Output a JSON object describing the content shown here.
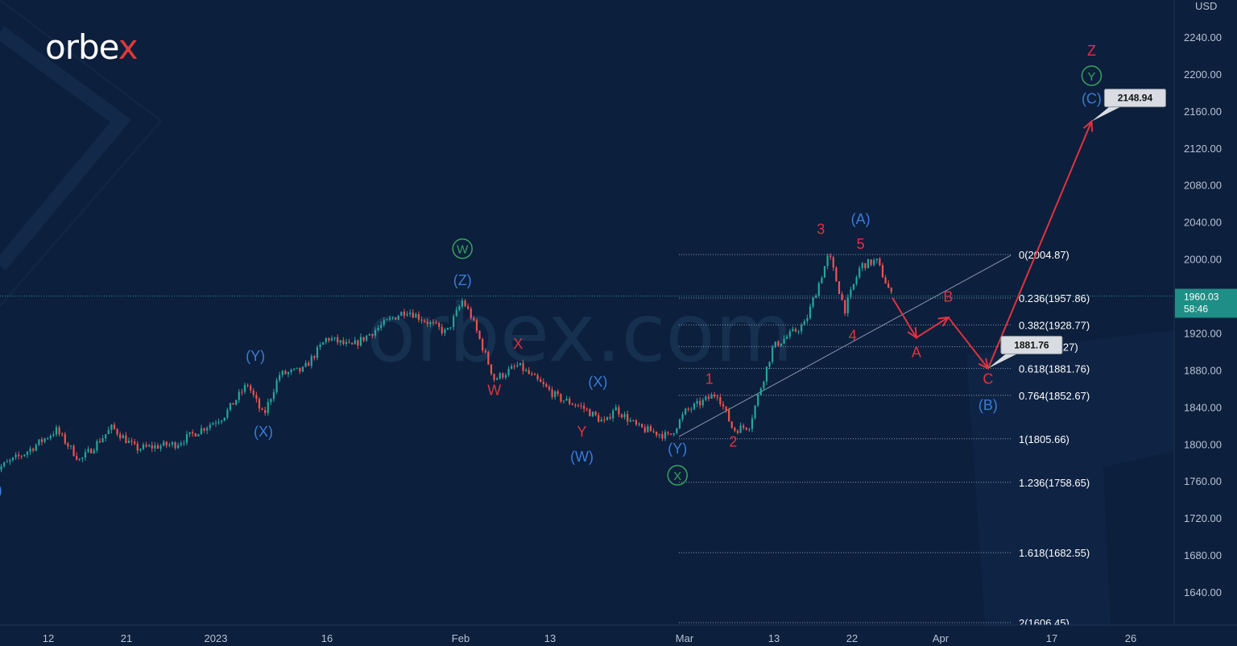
{
  "brand": {
    "logo_text": "orbe",
    "logo_x": "x",
    "watermark": "orbex.com"
  },
  "colors": {
    "background": "#0c1f3c",
    "candle_up": "#26a69a",
    "candle_down": "#ef5350",
    "wave_red": "#e0323f",
    "wave_blue": "#3a7bd8",
    "wave_green": "#39a35e",
    "price_tag": "#1e8f86"
  },
  "chart_data": {
    "type": "candlestick",
    "title": "",
    "ylabel": "USD",
    "currency": "USD",
    "ylim": [
      1612,
      2270
    ],
    "y_ticks": [
      "2240.00",
      "2200.00",
      "2160.00",
      "2120.00",
      "2080.00",
      "2040.00",
      "2000.00",
      "1960.00",
      "1920.00",
      "1880.00",
      "1840.00",
      "1800.00",
      "1760.00",
      "1720.00",
      "1680.00",
      "1640.00"
    ],
    "x_ticks": [
      "12",
      "21",
      "2023",
      "16",
      "Feb",
      "13",
      "Mar",
      "13",
      "22",
      "Apr",
      "17",
      "26"
    ],
    "current_price": "1960.03",
    "countdown": "58:46",
    "price_path": [
      [
        "2022-12-05",
        1770
      ],
      [
        "2022-12-09",
        1790
      ],
      [
        "2022-12-13",
        1815
      ],
      [
        "2022-12-16",
        1782
      ],
      [
        "2022-12-20",
        1818
      ],
      [
        "2022-12-23",
        1795
      ],
      [
        "2022-12-28",
        1800
      ],
      [
        "2023-01-03",
        1830
      ],
      [
        "2023-01-06",
        1865
      ],
      [
        "2023-01-08",
        1830
      ],
      [
        "2023-01-10",
        1875
      ],
      [
        "2023-01-13",
        1880
      ],
      [
        "2023-01-16",
        1915
      ],
      [
        "2023-01-19",
        1905
      ],
      [
        "2023-01-24",
        1935
      ],
      [
        "2023-01-26",
        1945
      ],
      [
        "2023-01-31",
        1920
      ],
      [
        "2023-02-02",
        1955
      ],
      [
        "2023-02-03",
        1940
      ],
      [
        "2023-02-06",
        1870
      ],
      [
        "2023-02-09",
        1885
      ],
      [
        "2023-02-14",
        1850
      ],
      [
        "2023-02-17",
        1840
      ],
      [
        "2023-02-20",
        1822
      ],
      [
        "2023-02-21",
        1840
      ],
      [
        "2023-02-24",
        1818
      ],
      [
        "2023-02-28",
        1808
      ],
      [
        "2023-03-02",
        1835
      ],
      [
        "2023-03-06",
        1855
      ],
      [
        "2023-03-08",
        1815
      ],
      [
        "2023-03-10",
        1820
      ],
      [
        "2023-03-13",
        1905
      ],
      [
        "2023-03-17",
        1930
      ],
      [
        "2023-03-20",
        2005
      ],
      [
        "2023-03-21",
        1975
      ],
      [
        "2023-03-22",
        1945
      ],
      [
        "2023-03-24",
        1993
      ],
      [
        "2023-03-26",
        1998
      ],
      [
        "2023-03-28",
        1958
      ]
    ],
    "fib_levels": [
      {
        "ratio": "0",
        "price": 2004.87,
        "label": "0(2004.87)"
      },
      {
        "ratio": "0.236",
        "price": 1957.86,
        "label": "0.236(1957.86)"
      },
      {
        "ratio": "0.382",
        "price": 1928.77,
        "label": "0.382(1928.77)"
      },
      {
        "ratio": "0.5",
        "price": 1905.27,
        "label": "0.5(1905.27)"
      },
      {
        "ratio": "0.618",
        "price": 1881.76,
        "label": "0.618(1881.76)"
      },
      {
        "ratio": "0.764",
        "price": 1852.67,
        "label": "0.764(1852.67)"
      },
      {
        "ratio": "1",
        "price": 1805.66,
        "label": "1(1805.66)"
      },
      {
        "ratio": "1.236",
        "price": 1758.65,
        "label": "1.236(1758.65)"
      },
      {
        "ratio": "1.618",
        "price": 1682.55,
        "label": "1.618(1682.55)"
      },
      {
        "ratio": "2",
        "price": 1606.45,
        "label": "2(1606.45)"
      }
    ],
    "forecast_path": [
      [
        "2023-03-28",
        1958
      ],
      [
        "2023-03-31",
        1915
      ],
      [
        "2023-04-04",
        1937
      ],
      [
        "2023-04-09",
        1881.76
      ],
      [
        "2023-04-22",
        2148.94
      ]
    ],
    "callouts": [
      {
        "text": "2148.94",
        "date": "2023-04-22",
        "price": 2148.94
      },
      {
        "text": "1881.76",
        "date": "2023-04-09",
        "price": 1881.76
      }
    ],
    "wave_labels": [
      {
        "text": "(X)",
        "color": "blue",
        "date": "2022-12-05",
        "price": 1745
      },
      {
        "text": "(Y)",
        "color": "blue",
        "date": "2023-01-07",
        "price": 1890
      },
      {
        "text": "(X)",
        "color": "blue",
        "date": "2023-01-08",
        "price": 1808
      },
      {
        "text": "(Z)",
        "color": "blue",
        "date": "2023-02-02",
        "price": 1972
      },
      {
        "text": "W",
        "color": "green_circle",
        "date": "2023-02-02",
        "price": 2006
      },
      {
        "text": "W",
        "color": "red",
        "date": "2023-02-06",
        "price": 1853
      },
      {
        "text": "X",
        "color": "red",
        "date": "2023-02-09",
        "price": 1903
      },
      {
        "text": "(X)",
        "color": "blue",
        "date": "2023-02-19",
        "price": 1862
      },
      {
        "text": "Y",
        "color": "red",
        "date": "2023-02-17",
        "price": 1808
      },
      {
        "text": "(W)",
        "color": "blue",
        "date": "2023-02-17",
        "price": 1781
      },
      {
        "text": "(Y)",
        "color": "blue",
        "date": "2023-03-01",
        "price": 1790
      },
      {
        "text": "X",
        "color": "green_circle",
        "date": "2023-03-01",
        "price": 1761
      },
      {
        "text": "1",
        "color": "red",
        "date": "2023-03-05",
        "price": 1865
      },
      {
        "text": "2",
        "color": "red",
        "date": "2023-03-08",
        "price": 1797
      },
      {
        "text": "3",
        "color": "red",
        "date": "2023-03-19",
        "price": 2027
      },
      {
        "text": "(A)",
        "color": "blue",
        "date": "2023-03-24",
        "price": 2038
      },
      {
        "text": "5",
        "color": "red",
        "date": "2023-03-24",
        "price": 2011
      },
      {
        "text": "4",
        "color": "red",
        "date": "2023-03-23",
        "price": 1912
      },
      {
        "text": "A",
        "color": "red",
        "date": "2023-03-31",
        "price": 1894
      },
      {
        "text": "B",
        "color": "red",
        "date": "2023-04-04",
        "price": 1954
      },
      {
        "text": "C",
        "color": "red",
        "date": "2023-04-09",
        "price": 1865
      },
      {
        "text": "(B)",
        "color": "blue",
        "date": "2023-04-09",
        "price": 1837
      },
      {
        "text": "(C)",
        "color": "blue",
        "date": "2023-04-22",
        "price": 2168
      },
      {
        "text": "Y",
        "color": "green_circle",
        "date": "2023-04-22",
        "price": 2193
      },
      {
        "text": "Z",
        "color": "red",
        "date": "2023-04-22",
        "price": 2220
      }
    ]
  }
}
